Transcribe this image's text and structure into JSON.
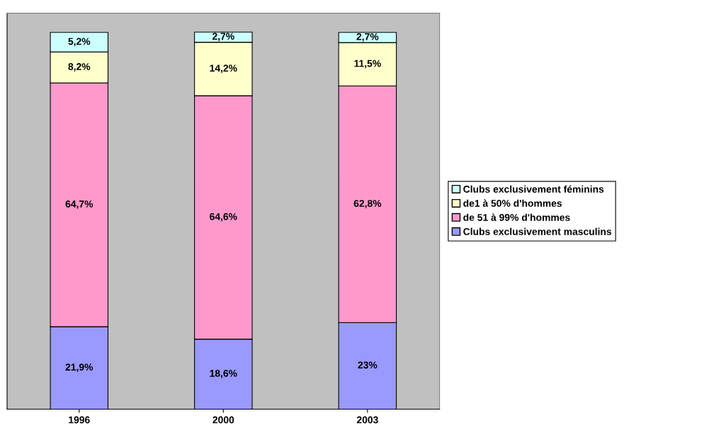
{
  "chart_data": {
    "type": "bar",
    "stacked": true,
    "categories": [
      "1996",
      "2000",
      "2003"
    ],
    "series": [
      {
        "name": "Clubs exclusivement masculins",
        "color": "#9999ff",
        "values": [
          21.9,
          18.6,
          23
        ],
        "value_labels": [
          "21,9%",
          "18,6%",
          "23%"
        ]
      },
      {
        "name": "de 51 à 99% d'hommes",
        "color": "#ff99cc",
        "values": [
          64.7,
          64.6,
          62.8
        ],
        "value_labels": [
          "64,7%",
          "64,6%",
          "62,8%"
        ]
      },
      {
        "name": "de1 à 50% d'hommes",
        "color": "#ffffcc",
        "values": [
          8.2,
          14.2,
          11.5
        ],
        "value_labels": [
          "8,2%",
          "14,2%",
          "11,5%"
        ]
      },
      {
        "name": "Clubs exclusivement féminins",
        "color": "#ccffff",
        "values": [
          5.2,
          2.7,
          2.7
        ],
        "value_labels": [
          "5,2%",
          "2,7%",
          "2,7%"
        ]
      }
    ],
    "legend": "right",
    "grid": false,
    "tick_labels": "x"
  }
}
